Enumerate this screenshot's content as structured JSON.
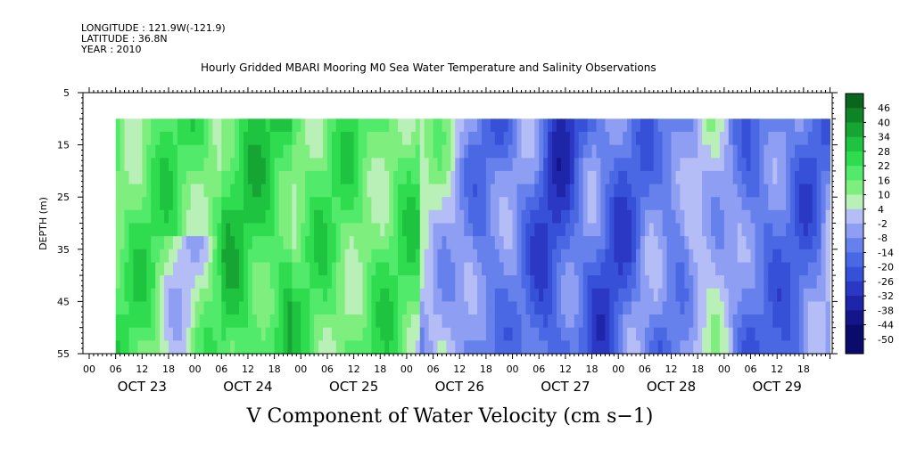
{
  "header": {
    "longitude": "LONGITUDE : 121.9W(-121.9)",
    "latitude": "LATITUDE : 36.8N",
    "year": "YEAR : 2010"
  },
  "chart_data": {
    "type": "heatmap",
    "title": "Hourly Gridded MBARI Mooring M0 Sea Water Temperature and Salinity Observations",
    "xlabel": "V Component of Water Velocity (cm s−1)",
    "ylabel": "DEPTH (m)",
    "ylim": [
      55,
      5
    ],
    "y_ticks": [
      "5",
      "15",
      "25",
      "35",
      "45",
      "55"
    ],
    "hour_ticks": [
      "00",
      "06",
      "12",
      "18",
      "00",
      "06",
      "12",
      "18",
      "00",
      "06",
      "12",
      "18",
      "00",
      "06",
      "12",
      "18",
      "00",
      "06",
      "12",
      "18",
      "00",
      "06",
      "12",
      "18",
      "00",
      "06",
      "12",
      "18"
    ],
    "days": [
      "OCT 23",
      "OCT 24",
      "OCT 25",
      "OCT 26",
      "OCT 27",
      "OCT 28",
      "OCT 29"
    ],
    "data_depth_range": [
      10,
      55
    ],
    "data_start_hour": 6,
    "colorbar": {
      "levels": [
        "46",
        "40",
        "34",
        "28",
        "22",
        "16",
        "10",
        "4",
        "-2",
        "-8",
        "-14",
        "-20",
        "-26",
        "-32",
        "-38",
        "-44",
        "-50"
      ],
      "range": [
        -50,
        52
      ]
    },
    "column_sign_pattern": "Green (positive) dominates Oct 23 06h through Oct 26 03h; mixed green/blue Oct 26 - Oct 29 with blue (negative) bands near Oct 26 18h, Oct 27 09h, Oct 28 00h, Oct 28 12h and Oct 29 06h"
  }
}
